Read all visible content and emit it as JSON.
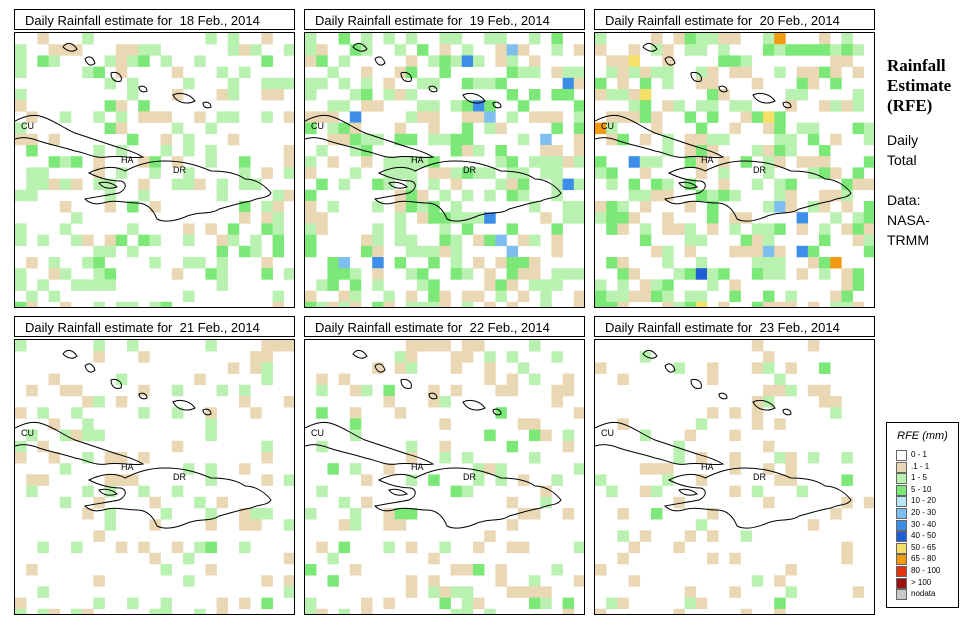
{
  "side": {
    "title": [
      "Rainfall",
      "Estimate",
      "(RFE)"
    ],
    "period": [
      "Daily",
      "Total"
    ],
    "source": [
      "Data:",
      "NASA-",
      "TRMM"
    ]
  },
  "panels": [
    {
      "title": "Daily Rainfall estimate for  18 Feb., 2014"
    },
    {
      "title": "Daily Rainfall estimate for  19 Feb., 2014"
    },
    {
      "title": "Daily Rainfall estimate for  20 Feb., 2014"
    },
    {
      "title": "Daily Rainfall estimate for  21 Feb., 2014"
    },
    {
      "title": "Daily Rainfall estimate for  22 Feb., 2014"
    },
    {
      "title": "Daily Rainfall estimate for  23 Feb., 2014"
    }
  ],
  "map_labels": {
    "cuba": "CU",
    "haiti": "HA",
    "dominican_republic": "DR"
  },
  "legend": {
    "title": "RFE (mm)",
    "classes": [
      {
        "label": "0 - 1",
        "color": "#ffffff"
      },
      {
        "label": ".1 - 1",
        "color": "#ead8b4"
      },
      {
        "label": "1 - 5",
        "color": "#b9f2b0"
      },
      {
        "label": "5 - 10",
        "color": "#7be878"
      },
      {
        "label": "10 - 20",
        "color": "#b9e6f5"
      },
      {
        "label": "20 - 30",
        "color": "#7fbff0"
      },
      {
        "label": "30 - 40",
        "color": "#3d8ee8"
      },
      {
        "label": "40 - 50",
        "color": "#1e5fd6"
      },
      {
        "label": "50 - 65",
        "color": "#f7e067"
      },
      {
        "label": "65 - 80",
        "color": "#f39a13"
      },
      {
        "label": "80 - 100",
        "color": "#e3320f"
      },
      {
        "label": "> 100",
        "color": "#9b1414"
      },
      {
        "label": "nodata",
        "color": "#c8c8c8"
      }
    ]
  }
}
